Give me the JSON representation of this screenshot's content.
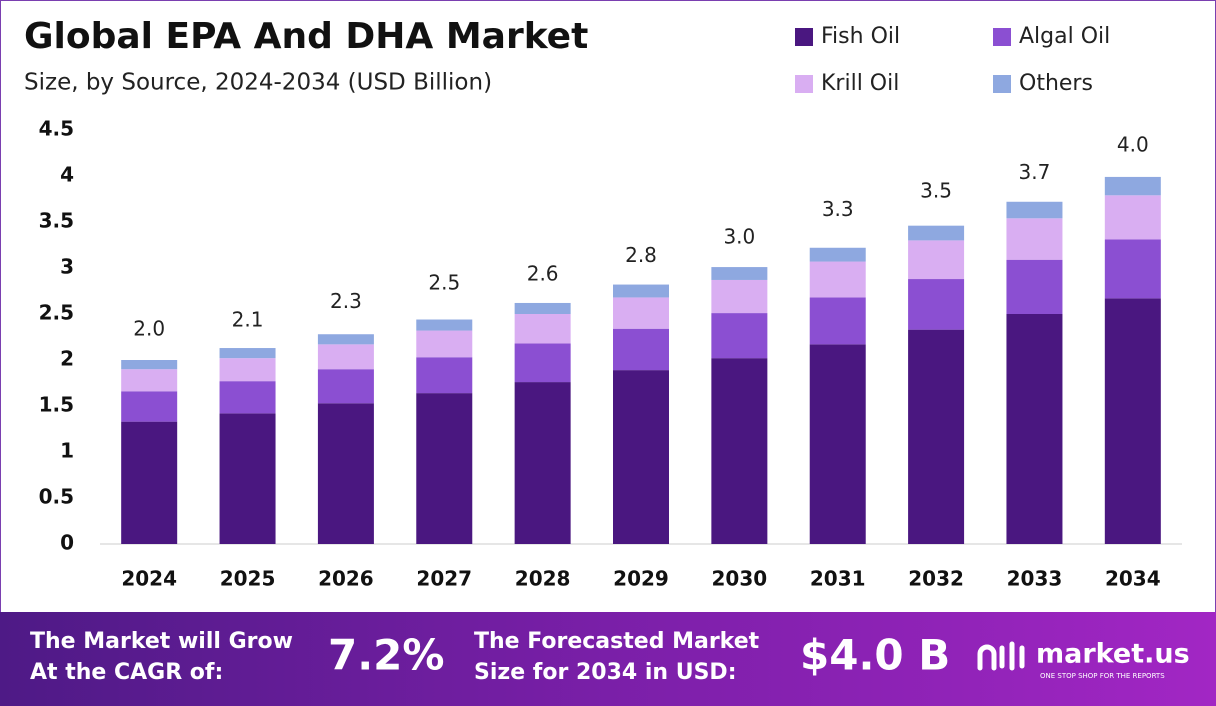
{
  "chart_data": {
    "type": "stacked-bar",
    "title": "Global EPA And DHA Market",
    "subtitle": "Size, by Source, 2024-2034 (USD Billion)",
    "categories": [
      "2024",
      "2025",
      "2026",
      "2027",
      "2028",
      "2029",
      "2030",
      "2031",
      "2032",
      "2033",
      "2034"
    ],
    "series": [
      {
        "name": "Fish Oil",
        "color": "#4a1780",
        "values": [
          1.33,
          1.42,
          1.53,
          1.64,
          1.76,
          1.89,
          2.02,
          2.17,
          2.33,
          2.5,
          2.67
        ]
      },
      {
        "name": "Algal Oil",
        "color": "#8b4fd2",
        "values": [
          0.33,
          0.35,
          0.37,
          0.39,
          0.42,
          0.45,
          0.49,
          0.51,
          0.55,
          0.59,
          0.64
        ]
      },
      {
        "name": "Krill Oil",
        "color": "#d9aef2",
        "values": [
          0.24,
          0.25,
          0.27,
          0.29,
          0.32,
          0.34,
          0.36,
          0.39,
          0.42,
          0.45,
          0.48
        ]
      },
      {
        "name": "Others",
        "color": "#8ea8e0",
        "values": [
          0.1,
          0.11,
          0.11,
          0.12,
          0.12,
          0.14,
          0.14,
          0.15,
          0.16,
          0.18,
          0.2
        ]
      }
    ],
    "totals": {
      "values": [
        2.0,
        2.1,
        2.3,
        2.5,
        2.6,
        2.8,
        3.0,
        3.3,
        3.5,
        3.7,
        4.0
      ],
      "value_labels": [
        "2.0",
        "2.1",
        "2.3",
        "2.5",
        "2.6",
        "2.8",
        "3.0",
        "3.3",
        "3.5",
        "3.7",
        "4.0"
      ]
    },
    "ylim": [
      0,
      4.5
    ],
    "yticks": [
      0,
      0.5,
      1,
      1.5,
      2,
      2.5,
      3,
      3.5,
      4,
      4.5
    ],
    "grid": false,
    "legend": "top-right"
  },
  "footer": {
    "cagr_label": [
      "The Market will Grow",
      "At the CAGR of:"
    ],
    "cagr_value": "7.2%",
    "forecast_label": [
      "The Forecasted Market",
      "Size for 2034 in USD:"
    ],
    "forecast_value": "$4.0 B",
    "brand": "market.us",
    "tagline": "ONE STOP SHOP FOR THE REPORTS"
  }
}
